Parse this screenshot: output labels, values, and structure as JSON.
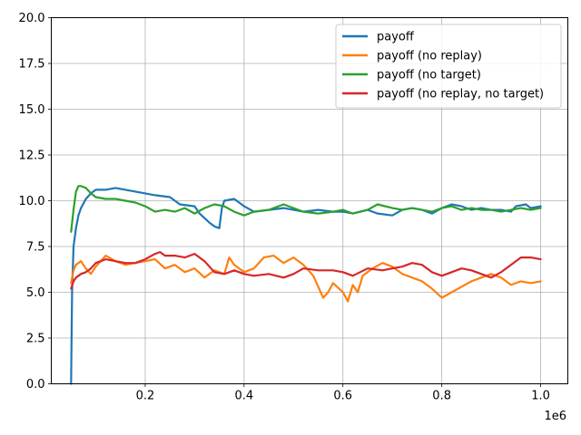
{
  "chart_data": {
    "type": "line",
    "title": "",
    "xlabel": "",
    "ylabel": "",
    "x_offset_label": "1e6",
    "xlim": [
      0.01,
      1.055
    ],
    "ylim": [
      0,
      20
    ],
    "x_ticks": [
      0.2,
      0.4,
      0.6,
      0.8,
      1.0
    ],
    "x_tick_labels": [
      "0.2",
      "0.4",
      "0.6",
      "0.8",
      "1.0"
    ],
    "y_ticks": [
      0,
      2.5,
      5,
      7.5,
      10,
      12.5,
      15,
      17.5,
      20
    ],
    "y_tick_labels": [
      "0.0",
      "2.5",
      "5.0",
      "7.5",
      "10.0",
      "12.5",
      "15.0",
      "17.5",
      "20.0"
    ],
    "grid": true,
    "legend_position": "top-right",
    "series": [
      {
        "name": "payoff",
        "color": "#1f77b4",
        "x": [
          0.05,
          0.052,
          0.055,
          0.06,
          0.065,
          0.07,
          0.08,
          0.09,
          0.1,
          0.12,
          0.14,
          0.16,
          0.18,
          0.2,
          0.22,
          0.25,
          0.27,
          0.3,
          0.31,
          0.33,
          0.34,
          0.35,
          0.355,
          0.36,
          0.38,
          0.4,
          0.42,
          0.45,
          0.48,
          0.5,
          0.52,
          0.55,
          0.58,
          0.6,
          0.62,
          0.65,
          0.67,
          0.7,
          0.72,
          0.74,
          0.76,
          0.78,
          0.8,
          0.82,
          0.84,
          0.86,
          0.88,
          0.9,
          0.92,
          0.94,
          0.95,
          0.97,
          0.98,
          1.0
        ],
        "values": [
          0.0,
          5.0,
          7.5,
          8.5,
          9.2,
          9.6,
          10.1,
          10.4,
          10.6,
          10.6,
          10.7,
          10.6,
          10.5,
          10.4,
          10.3,
          10.2,
          9.8,
          9.7,
          9.3,
          8.8,
          8.6,
          8.5,
          9.6,
          10.0,
          10.1,
          9.7,
          9.4,
          9.5,
          9.6,
          9.5,
          9.4,
          9.5,
          9.4,
          9.4,
          9.3,
          9.5,
          9.3,
          9.2,
          9.5,
          9.6,
          9.5,
          9.3,
          9.6,
          9.8,
          9.7,
          9.5,
          9.6,
          9.5,
          9.5,
          9.4,
          9.7,
          9.8,
          9.6,
          9.7
        ]
      },
      {
        "name": "payoff (no replay)",
        "color": "#ff7f0e",
        "x": [
          0.05,
          0.055,
          0.06,
          0.07,
          0.08,
          0.09,
          0.1,
          0.12,
          0.14,
          0.16,
          0.18,
          0.2,
          0.22,
          0.24,
          0.26,
          0.28,
          0.3,
          0.32,
          0.34,
          0.36,
          0.37,
          0.38,
          0.4,
          0.42,
          0.44,
          0.46,
          0.48,
          0.5,
          0.52,
          0.54,
          0.56,
          0.57,
          0.58,
          0.6,
          0.61,
          0.62,
          0.63,
          0.64,
          0.66,
          0.68,
          0.7,
          0.72,
          0.74,
          0.76,
          0.78,
          0.8,
          0.82,
          0.84,
          0.86,
          0.88,
          0.9,
          0.92,
          0.94,
          0.96,
          0.98,
          1.0
        ],
        "values": [
          5.5,
          6.2,
          6.5,
          6.7,
          6.3,
          6.0,
          6.4,
          7.0,
          6.7,
          6.5,
          6.6,
          6.7,
          6.8,
          6.3,
          6.5,
          6.1,
          6.3,
          5.8,
          6.2,
          6.0,
          6.9,
          6.5,
          6.1,
          6.3,
          6.9,
          7.0,
          6.6,
          6.9,
          6.5,
          5.9,
          4.7,
          5.0,
          5.5,
          5.0,
          4.5,
          5.4,
          5.0,
          5.9,
          6.3,
          6.6,
          6.4,
          6.0,
          5.8,
          5.6,
          5.2,
          4.7,
          5.0,
          5.3,
          5.6,
          5.8,
          6.0,
          5.8,
          5.4,
          5.6,
          5.5,
          5.6
        ]
      },
      {
        "name": "payoff (no target)",
        "color": "#2ca02c",
        "x": [
          0.05,
          0.055,
          0.06,
          0.065,
          0.07,
          0.08,
          0.09,
          0.1,
          0.12,
          0.14,
          0.16,
          0.18,
          0.2,
          0.22,
          0.24,
          0.26,
          0.28,
          0.3,
          0.32,
          0.34,
          0.36,
          0.38,
          0.4,
          0.42,
          0.45,
          0.48,
          0.5,
          0.52,
          0.55,
          0.58,
          0.6,
          0.62,
          0.65,
          0.67,
          0.7,
          0.72,
          0.74,
          0.76,
          0.78,
          0.8,
          0.82,
          0.84,
          0.86,
          0.88,
          0.9,
          0.92,
          0.94,
          0.96,
          0.98,
          1.0
        ],
        "values": [
          8.3,
          9.5,
          10.5,
          10.8,
          10.8,
          10.7,
          10.4,
          10.2,
          10.1,
          10.1,
          10.0,
          9.9,
          9.7,
          9.4,
          9.5,
          9.4,
          9.6,
          9.3,
          9.6,
          9.8,
          9.7,
          9.4,
          9.2,
          9.4,
          9.5,
          9.8,
          9.6,
          9.4,
          9.3,
          9.4,
          9.5,
          9.3,
          9.5,
          9.8,
          9.6,
          9.5,
          9.6,
          9.5,
          9.4,
          9.6,
          9.7,
          9.5,
          9.6,
          9.5,
          9.5,
          9.4,
          9.5,
          9.6,
          9.5,
          9.6
        ]
      },
      {
        "name": "payoff (no replay, no target)",
        "color": "#d62728",
        "x": [
          0.05,
          0.055,
          0.06,
          0.07,
          0.08,
          0.09,
          0.1,
          0.12,
          0.14,
          0.16,
          0.18,
          0.2,
          0.22,
          0.23,
          0.24,
          0.26,
          0.28,
          0.3,
          0.32,
          0.34,
          0.36,
          0.38,
          0.4,
          0.42,
          0.45,
          0.48,
          0.5,
          0.52,
          0.55,
          0.58,
          0.6,
          0.62,
          0.65,
          0.68,
          0.7,
          0.72,
          0.74,
          0.76,
          0.78,
          0.8,
          0.82,
          0.84,
          0.86,
          0.88,
          0.9,
          0.92,
          0.94,
          0.96,
          0.98,
          1.0
        ],
        "values": [
          5.2,
          5.6,
          5.8,
          6.0,
          6.1,
          6.3,
          6.6,
          6.8,
          6.7,
          6.6,
          6.6,
          6.8,
          7.1,
          7.2,
          7.0,
          7.0,
          6.9,
          7.1,
          6.7,
          6.1,
          6.0,
          6.2,
          6.0,
          5.9,
          6.0,
          5.8,
          6.0,
          6.3,
          6.2,
          6.2,
          6.1,
          5.9,
          6.3,
          6.2,
          6.3,
          6.4,
          6.6,
          6.5,
          6.1,
          5.9,
          6.1,
          6.3,
          6.2,
          6.0,
          5.8,
          6.1,
          6.5,
          6.9,
          6.9,
          6.8
        ]
      }
    ]
  }
}
